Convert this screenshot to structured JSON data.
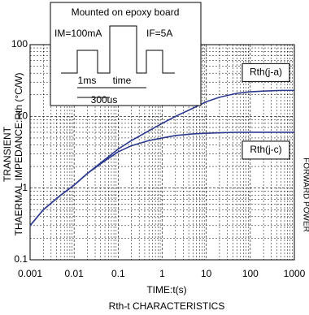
{
  "chart_data": {
    "type": "line",
    "x_label": "TIME:t(s)",
    "y_label_lines": [
      "TRANSIENT",
      "THAERMAL IMPEDANCE:Rth (°C/W)"
    ],
    "y2_label": "FORWARD POWER",
    "caption": "Rth-t CHARACTERISTICS",
    "x": [
      0.001,
      0.002,
      0.005,
      0.01,
      0.02,
      0.05,
      0.1,
      0.2,
      0.5,
      1,
      2,
      5,
      10,
      20,
      50,
      100,
      200,
      500,
      1000
    ],
    "series": [
      {
        "name": "Rth(j-a)",
        "color": "#2b3990",
        "values": [
          0.3,
          0.5,
          0.8,
          1.1,
          1.6,
          2.5,
          3.5,
          4.6,
          6.3,
          8,
          10,
          13,
          16,
          18.5,
          21,
          22,
          22.5,
          23,
          23
        ]
      },
      {
        "name": "Rth(j-c)",
        "color": "#2b3990",
        "values": [
          0.3,
          0.5,
          0.8,
          1.1,
          1.6,
          2.4,
          3.2,
          3.9,
          4.6,
          5,
          5.4,
          5.7,
          5.8,
          5.9,
          6,
          6,
          6,
          6,
          6
        ]
      }
    ],
    "xlim": [
      0.001,
      1000
    ],
    "xticks": [
      0.001,
      0.01,
      0.1,
      1,
      10,
      100,
      1000
    ],
    "ylim": [
      0.1,
      100
    ],
    "yticks": [
      0.1,
      1,
      10,
      100
    ],
    "log_x": true,
    "log_y": true,
    "grid": true,
    "minor_grid": true,
    "inset": {
      "title": "Mounted on epoxy board",
      "im": "IM=100mA",
      "if": "IF=5A",
      "pulse": "1ms",
      "period": "time",
      "gap": "300us"
    }
  }
}
